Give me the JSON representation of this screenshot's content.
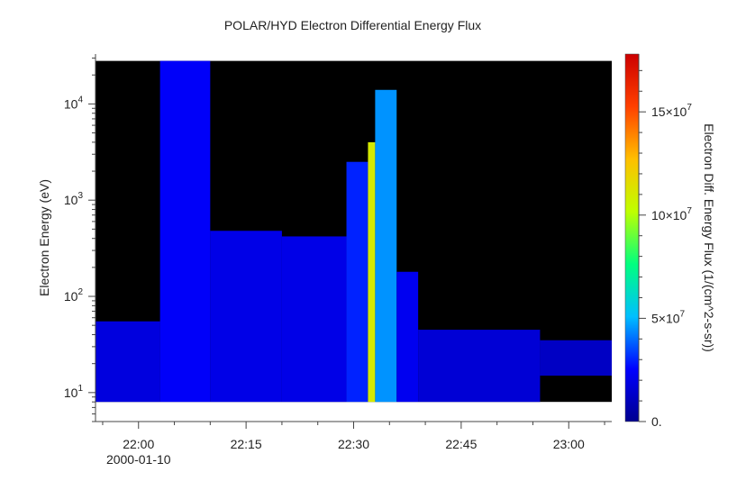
{
  "chart_data": {
    "type": "heatmap",
    "title": "POLAR/HYD  Electron Differential Energy Flux",
    "xlabel": "",
    "ylabel": "Electron Energy (eV)",
    "colorbar_label": "Electron Diff. Energy Flux (1/(cm^2-s-sr))",
    "y_scale": "log",
    "x_range": [
      "21:54",
      "23:06"
    ],
    "y_range": [
      5,
      33000
    ],
    "color_range": [
      0,
      178000000
    ],
    "x_ticks": [
      {
        "label": "22:00",
        "sublabel": "2000-01-10"
      },
      {
        "label": "22:15"
      },
      {
        "label": "22:30"
      },
      {
        "label": "22:45"
      },
      {
        "label": "23:00"
      }
    ],
    "y_ticks": [
      {
        "value": 10,
        "label": "10",
        "exp": "1"
      },
      {
        "value": 100,
        "label": "10",
        "exp": "2"
      },
      {
        "value": 1000,
        "label": "10",
        "exp": "3"
      },
      {
        "value": 10000,
        "label": "10",
        "exp": "4"
      }
    ],
    "colorbar_ticks": [
      {
        "value": 0,
        "label": "0."
      },
      {
        "value": 50000000,
        "label": "5×10",
        "exp": "7"
      },
      {
        "value": 100000000,
        "label": "10×10",
        "exp": "7"
      },
      {
        "value": 150000000,
        "label": "15×10",
        "exp": "7"
      }
    ],
    "colormap": [
      "#00008f",
      "#0000ff",
      "#00bfff",
      "#00ff7f",
      "#bfff00",
      "#ffbf00",
      "#ff4000",
      "#cc0000"
    ],
    "background_color": "#000000",
    "data_energy_range": [
      8,
      28000
    ],
    "regions": [
      {
        "t0": "21:54",
        "t1": "22:03",
        "e_min": 8,
        "e_max": 55,
        "flux": 18000000
      },
      {
        "t0": "22:03",
        "t1": "22:10",
        "e_min": 8,
        "e_max": 28000,
        "flux": 24000000
      },
      {
        "t0": "22:10",
        "t1": "22:20",
        "e_min": 8,
        "e_max": 480,
        "flux": 20000000
      },
      {
        "t0": "22:20",
        "t1": "22:29",
        "e_min": 8,
        "e_max": 420,
        "flux": 20000000
      },
      {
        "t0": "22:29",
        "t1": "22:32",
        "e_min": 8,
        "e_max": 2500,
        "flux": 30000000
      },
      {
        "t0": "22:32",
        "t1": "22:33",
        "e_min": 8,
        "e_max": 4000,
        "flux": 110000000
      },
      {
        "t0": "22:33",
        "t1": "22:36",
        "e_min": 8,
        "e_max": 14000,
        "flux": 45000000
      },
      {
        "t0": "22:36",
        "t1": "22:39",
        "e_min": 8,
        "e_max": 180,
        "flux": 22000000
      },
      {
        "t0": "22:39",
        "t1": "22:56",
        "e_min": 8,
        "e_max": 45,
        "flux": 16000000
      },
      {
        "t0": "22:56",
        "t1": "23:06",
        "e_min": 15,
        "e_max": 35,
        "flux": 12000000
      }
    ]
  }
}
